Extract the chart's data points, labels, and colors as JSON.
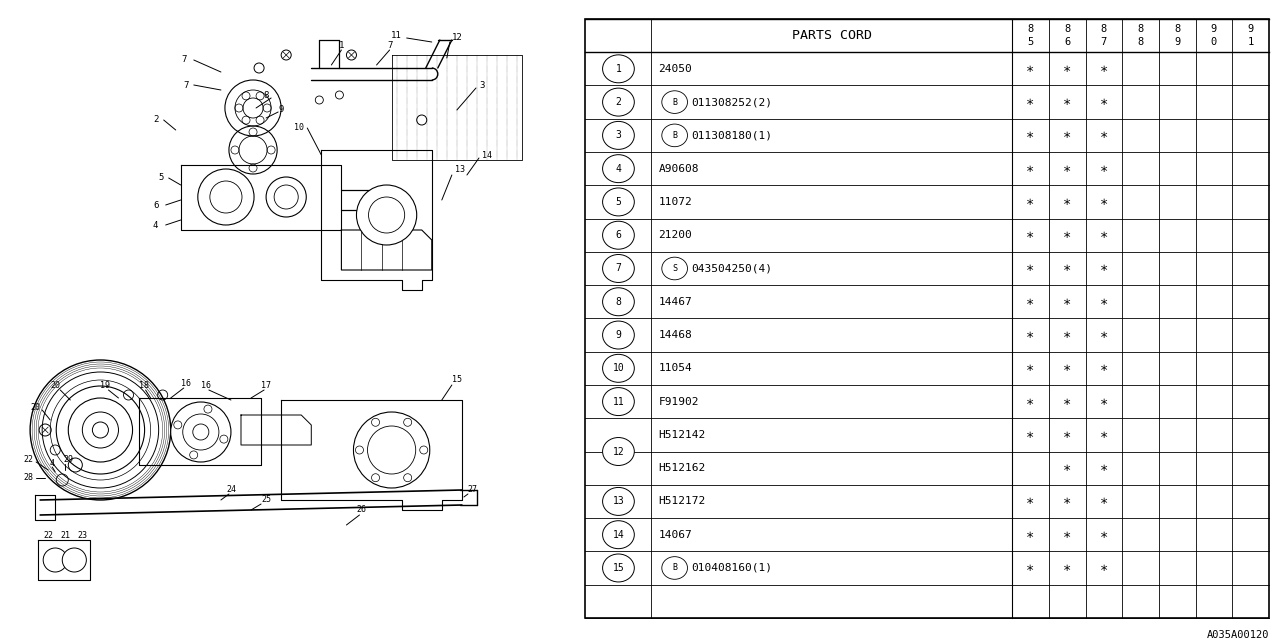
{
  "bg_color": "#ffffff",
  "col_header": "PARTS CORD",
  "year_labels": [
    [
      "8",
      "5"
    ],
    [
      "8",
      "6"
    ],
    [
      "8",
      "7"
    ],
    [
      "8",
      "8"
    ],
    [
      "8",
      "9"
    ],
    [
      "9",
      "0"
    ],
    [
      "9",
      "1"
    ]
  ],
  "parts": [
    {
      "num": "1",
      "prefix": "",
      "code": "24050",
      "marks": [
        1,
        1,
        1,
        0,
        0,
        0,
        0
      ]
    },
    {
      "num": "2",
      "prefix": "B",
      "code": "011308252(2)",
      "marks": [
        1,
        1,
        1,
        0,
        0,
        0,
        0
      ]
    },
    {
      "num": "3",
      "prefix": "B",
      "code": "011308180(1)",
      "marks": [
        1,
        1,
        1,
        0,
        0,
        0,
        0
      ]
    },
    {
      "num": "4",
      "prefix": "",
      "code": "A90608",
      "marks": [
        1,
        1,
        1,
        0,
        0,
        0,
        0
      ]
    },
    {
      "num": "5",
      "prefix": "",
      "code": "11072",
      "marks": [
        1,
        1,
        1,
        0,
        0,
        0,
        0
      ]
    },
    {
      "num": "6",
      "prefix": "",
      "code": "21200",
      "marks": [
        1,
        1,
        1,
        0,
        0,
        0,
        0
      ]
    },
    {
      "num": "7",
      "prefix": "S",
      "code": "043504250(4)",
      "marks": [
        1,
        1,
        1,
        0,
        0,
        0,
        0
      ]
    },
    {
      "num": "8",
      "prefix": "",
      "code": "14467",
      "marks": [
        1,
        1,
        1,
        0,
        0,
        0,
        0
      ]
    },
    {
      "num": "9",
      "prefix": "",
      "code": "14468",
      "marks": [
        1,
        1,
        1,
        0,
        0,
        0,
        0
      ]
    },
    {
      "num": "10",
      "prefix": "",
      "code": "11054",
      "marks": [
        1,
        1,
        1,
        0,
        0,
        0,
        0
      ]
    },
    {
      "num": "11",
      "prefix": "",
      "code": "F91902",
      "marks": [
        1,
        1,
        1,
        0,
        0,
        0,
        0
      ]
    },
    {
      "num": "12",
      "prefix": "",
      "code": "H512142",
      "marks": [
        1,
        1,
        1,
        0,
        0,
        0,
        0
      ],
      "sub_code": "H512162",
      "sub_marks": [
        0,
        1,
        1,
        0,
        0,
        0,
        0
      ]
    },
    {
      "num": "13",
      "prefix": "",
      "code": "H512172",
      "marks": [
        1,
        1,
        1,
        0,
        0,
        0,
        0
      ]
    },
    {
      "num": "14",
      "prefix": "",
      "code": "14067",
      "marks": [
        1,
        1,
        1,
        0,
        0,
        0,
        0
      ]
    },
    {
      "num": "15",
      "prefix": "B",
      "code": "010408160(1)",
      "marks": [
        1,
        1,
        1,
        0,
        0,
        0,
        0
      ]
    }
  ],
  "footer_code": "A035A00120",
  "drawing_labels": {
    "top_group": [
      "7",
      "7",
      "8",
      "9",
      "10",
      "11",
      "12",
      "13",
      "14",
      "1",
      "3",
      "2",
      "5",
      "6",
      "4",
      "7"
    ],
    "bottom_group": [
      "16",
      "17",
      "18",
      "19",
      "20",
      "15",
      "22",
      "28",
      "4",
      "29",
      "20",
      "24",
      "25",
      "26",
      "27",
      "22",
      "21",
      "23"
    ]
  }
}
